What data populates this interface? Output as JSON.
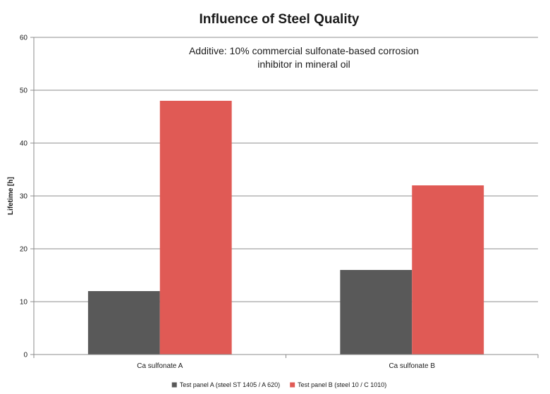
{
  "chart_data": {
    "type": "bar",
    "title": "Influence of Steel Quality",
    "annotation_lines": [
      "Additive: 10% commercial sulfonate-based corrosion",
      "inhibitor in mineral oil"
    ],
    "ylabel": "Lifetime [h]",
    "xlabel": "",
    "ylim": [
      0,
      60
    ],
    "yticks": [
      0,
      10,
      20,
      30,
      40,
      50,
      60
    ],
    "grid": true,
    "legend_position": "bottom",
    "categories": [
      "Ca sulfonate A",
      "Ca sulfonate B"
    ],
    "series": [
      {
        "name": "Test panel A (steel ST 1405 / A 620)",
        "color": "#595959",
        "values": [
          12,
          16
        ]
      },
      {
        "name": "Test panel B (steel 10 / C 1010)",
        "color": "#e05a55",
        "values": [
          48,
          32
        ]
      }
    ]
  }
}
